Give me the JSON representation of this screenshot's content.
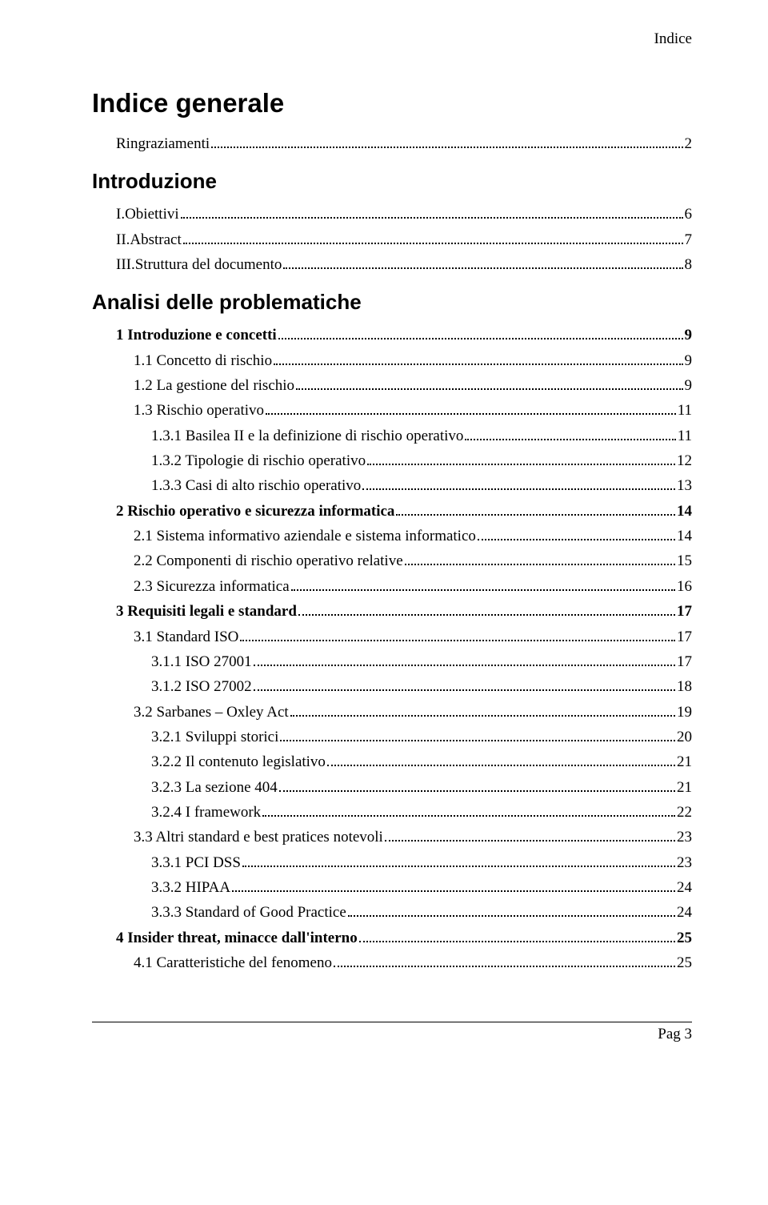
{
  "header": {
    "label": "Indice"
  },
  "title": "Indice generale",
  "toc": [
    {
      "label": "Ringraziamenti",
      "page": "2",
      "indent": 1,
      "bold": false
    },
    {
      "label": "Introduzione",
      "section": true
    },
    {
      "label": "I.Obiettivi",
      "page": "6",
      "indent": 1,
      "bold": false
    },
    {
      "label": "II.Abstract",
      "page": "7",
      "indent": 1,
      "bold": false
    },
    {
      "label": "III.Struttura del documento",
      "page": "8",
      "indent": 1,
      "bold": false
    },
    {
      "label": "Analisi delle problematiche",
      "section": true
    },
    {
      "label": "1 Introduzione e concetti",
      "page": "9",
      "indent": 1,
      "bold": true
    },
    {
      "label": "1.1 Concetto di rischio",
      "page": "9",
      "indent": 2,
      "bold": false
    },
    {
      "label": "1.2 La gestione del rischio",
      "page": "9",
      "indent": 2,
      "bold": false
    },
    {
      "label": "1.3 Rischio operativo",
      "page": "11",
      "indent": 2,
      "bold": false
    },
    {
      "label": "1.3.1 Basilea II e la definizione di rischio operativo",
      "page": "11",
      "indent": 3,
      "bold": false
    },
    {
      "label": "1.3.2 Tipologie di rischio operativo",
      "page": "12",
      "indent": 3,
      "bold": false
    },
    {
      "label": "1.3.3 Casi di alto rischio operativo",
      "page": "13",
      "indent": 3,
      "bold": false
    },
    {
      "label": "2 Rischio operativo e sicurezza informatica",
      "page": "14",
      "indent": 1,
      "bold": true
    },
    {
      "label": "2.1 Sistema informativo aziendale e sistema informatico",
      "page": "14",
      "indent": 2,
      "bold": false
    },
    {
      "label": "2.2 Componenti di rischio operativo relative",
      "page": "15",
      "indent": 2,
      "bold": false
    },
    {
      "label": "2.3 Sicurezza informatica",
      "page": "16",
      "indent": 2,
      "bold": false
    },
    {
      "label": "3 Requisiti legali e standard",
      "page": "17",
      "indent": 1,
      "bold": true
    },
    {
      "label": "3.1 Standard ISO",
      "page": "17",
      "indent": 2,
      "bold": false
    },
    {
      "label": "3.1.1 ISO 27001",
      "page": "17",
      "indent": 3,
      "bold": false
    },
    {
      "label": "3.1.2 ISO 27002",
      "page": "18",
      "indent": 3,
      "bold": false
    },
    {
      "label": "3.2 Sarbanes – Oxley Act",
      "page": "19",
      "indent": 2,
      "bold": false
    },
    {
      "label": "3.2.1 Sviluppi storici",
      "page": "20",
      "indent": 3,
      "bold": false
    },
    {
      "label": "3.2.2 Il contenuto legislativo",
      "page": "21",
      "indent": 3,
      "bold": false
    },
    {
      "label": "3.2.3 La sezione 404",
      "page": "21",
      "indent": 3,
      "bold": false
    },
    {
      "label": "3.2.4 I framework",
      "page": "22",
      "indent": 3,
      "bold": false
    },
    {
      "label": "3.3 Altri standard e best pratices notevoli",
      "page": "23",
      "indent": 2,
      "bold": false
    },
    {
      "label": "3.3.1 PCI DSS",
      "page": "23",
      "indent": 3,
      "bold": false
    },
    {
      "label": "3.3.2 HIPAA",
      "page": "24",
      "indent": 3,
      "bold": false
    },
    {
      "label": "3.3.3 Standard of Good Practice",
      "page": "24",
      "indent": 3,
      "bold": false
    },
    {
      "label": "4 Insider threat, minacce dall'interno",
      "page": "25",
      "indent": 1,
      "bold": true
    },
    {
      "label": "4.1 Caratteristiche del fenomeno",
      "page": "25",
      "indent": 2,
      "bold": false
    }
  ],
  "footer": {
    "page": "Pag 3"
  },
  "colors": {
    "text": "#000000",
    "background": "#ffffff",
    "leader": "#000000",
    "rule": "#000000"
  },
  "typography": {
    "body_family": "Times New Roman",
    "heading_family": "Arial",
    "title_size_pt": 33,
    "section_size_pt": 26,
    "row_size_pt": 19
  }
}
